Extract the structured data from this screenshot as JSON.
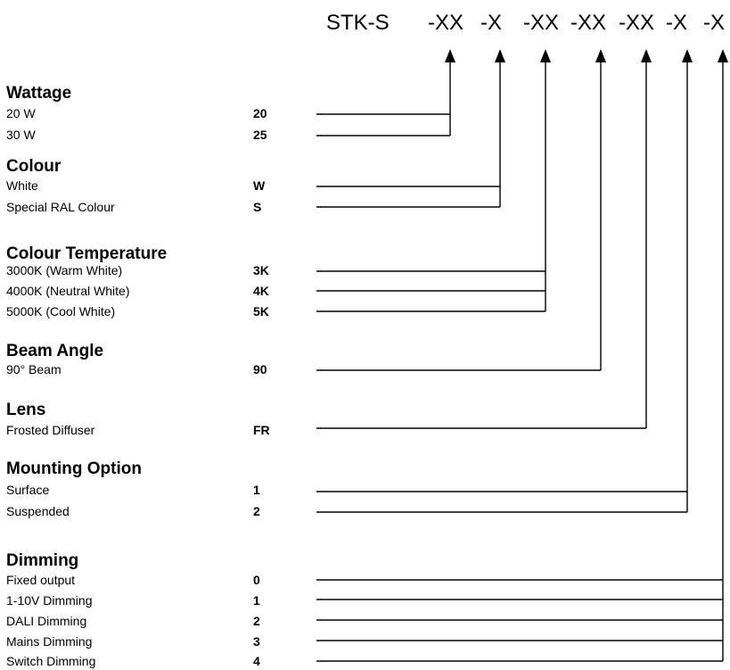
{
  "code_header": {
    "prefix": "STK-S",
    "segments": [
      "-XX",
      "-X",
      "-XX",
      "-XX",
      "-XX",
      "-X",
      "-X"
    ]
  },
  "groups": [
    {
      "key": "wattage",
      "heading": "Wattage",
      "options": [
        {
          "label": "20 W",
          "code": "20"
        },
        {
          "label": "30 W",
          "code": "25"
        }
      ]
    },
    {
      "key": "colour",
      "heading": "Colour",
      "options": [
        {
          "label": "White",
          "code": "W"
        },
        {
          "label": "Special RAL Colour",
          "code": "S"
        }
      ]
    },
    {
      "key": "colour-temperature",
      "heading": "Colour Temperature",
      "options": [
        {
          "label": "3000K (Warm White)",
          "code": "3K"
        },
        {
          "label": "4000K (Neutral White)",
          "code": "4K"
        },
        {
          "label": "5000K (Cool White)",
          "code": "5K"
        }
      ]
    },
    {
      "key": "beam-angle",
      "heading": "Beam Angle",
      "options": [
        {
          "label": "90° Beam",
          "code": "90"
        }
      ]
    },
    {
      "key": "lens",
      "heading": "Lens",
      "options": [
        {
          "label": "Frosted Diffuser",
          "code": "FR"
        }
      ]
    },
    {
      "key": "mounting-option",
      "heading": "Mounting Option",
      "options": [
        {
          "label": "Surface",
          "code": "1"
        },
        {
          "label": "Suspended",
          "code": "2"
        }
      ]
    },
    {
      "key": "dimming",
      "heading": "Dimming",
      "options": [
        {
          "label": "Fixed output",
          "code": "0"
        },
        {
          "label": "1-10V Dimming",
          "code": "1"
        },
        {
          "label": "DALI Dimming",
          "code": "2"
        },
        {
          "label": "Mains Dimming",
          "code": "3"
        },
        {
          "label": "Switch Dimming",
          "code": "4"
        }
      ]
    }
  ]
}
